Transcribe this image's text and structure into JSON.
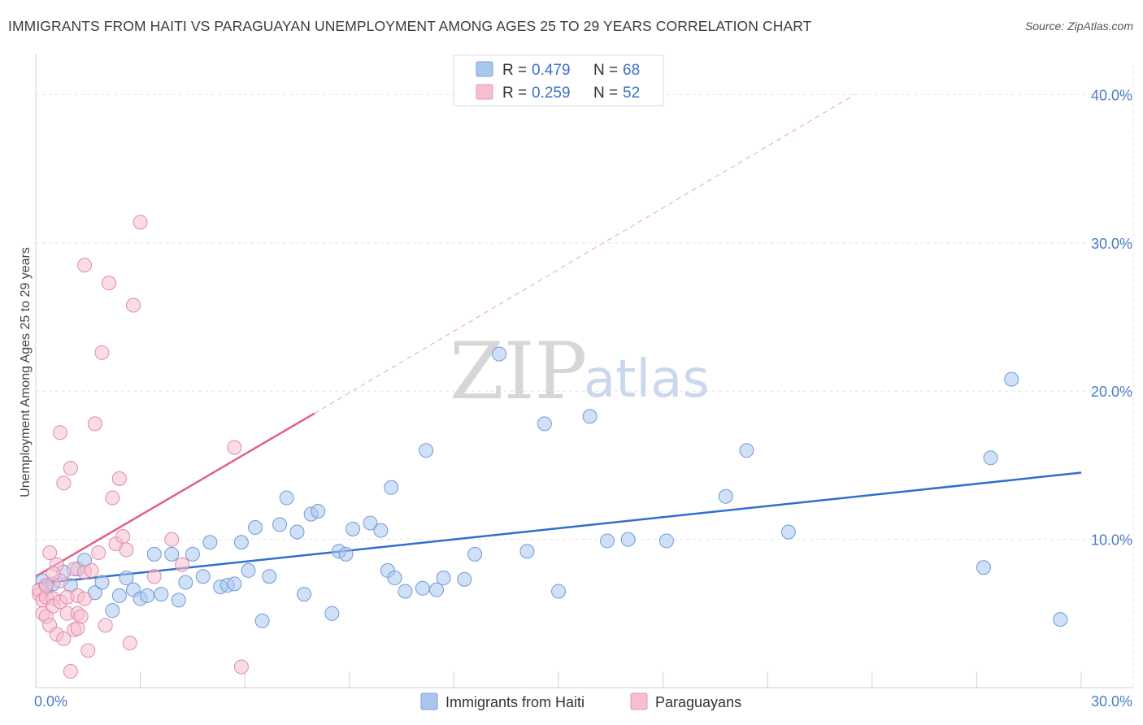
{
  "header": {
    "title": "IMMIGRANTS FROM HAITI VS PARAGUAYAN UNEMPLOYMENT AMONG AGES 25 TO 29 YEARS CORRELATION CHART",
    "source": "Source: ZipAtlas.com"
  },
  "watermark": {
    "zip": "ZIP",
    "atlas": "atlas"
  },
  "legend": {
    "r_label": "R =",
    "n_label": "N =",
    "rows": [
      {
        "r": "0.479",
        "n": "68",
        "color": "#a9c6ee",
        "stroke": "#7aa2dc"
      },
      {
        "r": "0.259",
        "n": "52",
        "color": "#f6bfd0",
        "stroke": "#e897b0"
      }
    ]
  },
  "chart_data": {
    "type": "scatter",
    "title": "IMMIGRANTS FROM HAITI VS PARAGUAYAN UNEMPLOYMENT AMONG AGES 25 TO 29 YEARS CORRELATION CHART",
    "xlabel": "",
    "ylabel": "Unemployment Among Ages 25 to 29 years",
    "xlim": [
      0,
      30
    ],
    "ylim": [
      0,
      42
    ],
    "x_tick_labels": [
      "0.0%",
      "30.0%"
    ],
    "y_ticks": [
      10,
      20,
      30,
      40
    ],
    "y_tick_labels": [
      "10.0%",
      "20.0%",
      "30.0%",
      "40.0%"
    ],
    "grid": true,
    "legend_position": "top-center",
    "series": [
      {
        "name": "Immigrants from Haiti",
        "color": "#a9c6ee",
        "stroke": "#6f9bd8",
        "trend": {
          "x": [
            0,
            30
          ],
          "y": [
            7.0,
            14.5
          ],
          "color": "#2f6fce"
        },
        "points": [
          [
            0.2,
            7.2
          ],
          [
            0.3,
            6.8
          ],
          [
            0.5,
            7.0
          ],
          [
            0.8,
            7.8
          ],
          [
            1.0,
            6.9
          ],
          [
            1.2,
            8.0
          ],
          [
            1.4,
            8.6
          ],
          [
            1.7,
            6.4
          ],
          [
            1.9,
            7.1
          ],
          [
            2.2,
            5.2
          ],
          [
            2.4,
            6.2
          ],
          [
            2.6,
            7.4
          ],
          [
            2.8,
            6.6
          ],
          [
            3.0,
            6.0
          ],
          [
            3.2,
            6.2
          ],
          [
            3.4,
            9.0
          ],
          [
            3.6,
            6.3
          ],
          [
            3.9,
            9.0
          ],
          [
            4.1,
            5.9
          ],
          [
            4.3,
            7.1
          ],
          [
            4.5,
            9.0
          ],
          [
            4.8,
            7.5
          ],
          [
            5.0,
            9.8
          ],
          [
            5.3,
            6.8
          ],
          [
            5.5,
            6.9
          ],
          [
            5.7,
            7.0
          ],
          [
            5.9,
            9.8
          ],
          [
            6.1,
            7.9
          ],
          [
            6.3,
            10.8
          ],
          [
            6.5,
            4.5
          ],
          [
            6.7,
            7.5
          ],
          [
            7.0,
            11.0
          ],
          [
            7.2,
            12.8
          ],
          [
            7.5,
            10.5
          ],
          [
            7.7,
            6.3
          ],
          [
            7.9,
            11.7
          ],
          [
            8.1,
            11.9
          ],
          [
            8.5,
            5.0
          ],
          [
            8.7,
            9.2
          ],
          [
            8.9,
            9.0
          ],
          [
            9.1,
            10.7
          ],
          [
            9.6,
            11.1
          ],
          [
            9.9,
            10.6
          ],
          [
            10.1,
            7.9
          ],
          [
            10.2,
            13.5
          ],
          [
            10.3,
            7.4
          ],
          [
            10.6,
            6.5
          ],
          [
            11.1,
            6.7
          ],
          [
            11.2,
            16.0
          ],
          [
            11.5,
            6.6
          ],
          [
            11.7,
            7.4
          ],
          [
            12.3,
            7.3
          ],
          [
            12.6,
            9.0
          ],
          [
            13.3,
            22.5
          ],
          [
            14.1,
            9.2
          ],
          [
            14.6,
            17.8
          ],
          [
            15.0,
            6.5
          ],
          [
            15.9,
            18.3
          ],
          [
            16.4,
            9.9
          ],
          [
            17.0,
            10.0
          ],
          [
            18.1,
            9.9
          ],
          [
            19.8,
            12.9
          ],
          [
            20.4,
            16.0
          ],
          [
            21.6,
            10.5
          ],
          [
            27.2,
            8.1
          ],
          [
            27.4,
            15.5
          ],
          [
            28.0,
            20.8
          ],
          [
            29.4,
            4.6
          ]
        ]
      },
      {
        "name": "Paraguayans",
        "color": "#f6bfd0",
        "stroke": "#e28aa7",
        "trend": {
          "x": [
            0,
            8.0
          ],
          "y": [
            7.5,
            18.5
          ],
          "color": "#e0608b",
          "dashed_extension_to": [
            23.5,
            40.0
          ]
        },
        "points": [
          [
            0.1,
            6.3
          ],
          [
            0.1,
            6.6
          ],
          [
            0.2,
            5.9
          ],
          [
            0.2,
            5.0
          ],
          [
            0.3,
            4.8
          ],
          [
            0.3,
            6.1
          ],
          [
            0.4,
            4.2
          ],
          [
            0.4,
            9.1
          ],
          [
            0.5,
            6.0
          ],
          [
            0.5,
            5.5
          ],
          [
            0.6,
            8.3
          ],
          [
            0.6,
            3.6
          ],
          [
            0.7,
            5.8
          ],
          [
            0.7,
            17.2
          ],
          [
            0.7,
            7.2
          ],
          [
            0.8,
            13.8
          ],
          [
            0.8,
            3.3
          ],
          [
            0.9,
            5.0
          ],
          [
            0.9,
            6.1
          ],
          [
            1.0,
            1.1
          ],
          [
            1.0,
            14.8
          ],
          [
            1.1,
            3.9
          ],
          [
            1.1,
            8.0
          ],
          [
            1.2,
            4.0
          ],
          [
            1.2,
            6.2
          ],
          [
            1.2,
            5.0
          ],
          [
            1.3,
            4.8
          ],
          [
            1.4,
            7.8
          ],
          [
            1.4,
            28.5
          ],
          [
            1.4,
            6.0
          ],
          [
            1.5,
            2.5
          ],
          [
            1.6,
            7.9
          ],
          [
            1.7,
            17.8
          ],
          [
            1.8,
            9.1
          ],
          [
            1.9,
            22.6
          ],
          [
            2.0,
            4.2
          ],
          [
            2.1,
            27.3
          ],
          [
            2.2,
            12.8
          ],
          [
            2.3,
            9.7
          ],
          [
            2.4,
            14.1
          ],
          [
            2.5,
            10.2
          ],
          [
            2.6,
            9.3
          ],
          [
            2.7,
            3.0
          ],
          [
            2.8,
            25.8
          ],
          [
            3.0,
            31.4
          ],
          [
            3.4,
            7.5
          ],
          [
            3.9,
            10.0
          ],
          [
            4.2,
            8.3
          ],
          [
            5.7,
            16.2
          ],
          [
            5.9,
            1.4
          ],
          [
            0.3,
            6.9
          ],
          [
            0.5,
            7.7
          ]
        ]
      }
    ]
  }
}
